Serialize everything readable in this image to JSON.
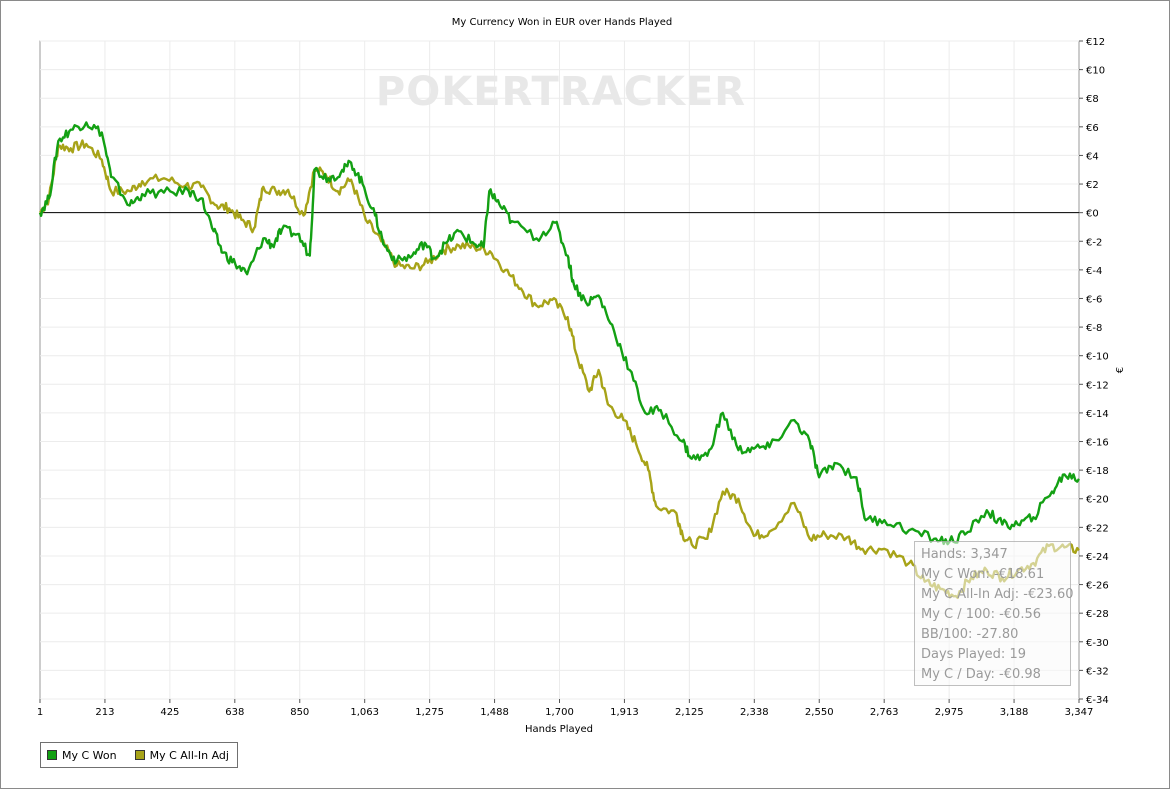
{
  "chart_data": {
    "type": "line",
    "title": "My Currency Won in EUR over Hands Played",
    "xlabel": "Hands Played",
    "ylabel": "€",
    "xlim": [
      1,
      3347
    ],
    "ylim": [
      -34,
      12
    ],
    "x_ticks": [
      "1",
      "213",
      "425",
      "638",
      "850",
      "1,063",
      "1,275",
      "1,488",
      "1,700",
      "1,913",
      "2,125",
      "2,338",
      "2,550",
      "2,763",
      "2,975",
      "3,188",
      "3,347"
    ],
    "y_ticks": [
      "€12",
      "€10",
      "€8",
      "€6",
      "€4",
      "€2",
      "€0",
      "€-2",
      "€-4",
      "€-6",
      "€-8",
      "€-10",
      "€-12",
      "€-14",
      "€-16",
      "€-18",
      "€-20",
      "€-22",
      "€-24",
      "€-26",
      "€-28",
      "€-30",
      "€-32",
      "€-34"
    ],
    "watermark": "POKERTRACKER",
    "grid": true,
    "legend_position": "bottom-left",
    "series": [
      {
        "name": "My C Won",
        "color": "#13a013",
        "points": [
          [
            1,
            0
          ],
          [
            30,
            1
          ],
          [
            60,
            5
          ],
          [
            100,
            5.8
          ],
          [
            150,
            6.3
          ],
          [
            200,
            5.6
          ],
          [
            230,
            2.5
          ],
          [
            290,
            0.5
          ],
          [
            330,
            1.3
          ],
          [
            400,
            1.4
          ],
          [
            480,
            1.5
          ],
          [
            520,
            1
          ],
          [
            560,
            -1.3
          ],
          [
            590,
            -2.8
          ],
          [
            630,
            -3.6
          ],
          [
            668,
            -4.3
          ],
          [
            720,
            -1.8
          ],
          [
            750,
            -2.3
          ],
          [
            780,
            -1.2
          ],
          [
            830,
            -1.5
          ],
          [
            870,
            -3
          ],
          [
            885,
            3
          ],
          [
            930,
            2.4
          ],
          [
            970,
            2.8
          ],
          [
            1003,
            3.5
          ],
          [
            1040,
            2
          ],
          [
            1080,
            -0.2
          ],
          [
            1110,
            -2.3
          ],
          [
            1150,
            -3.4
          ],
          [
            1200,
            -3
          ],
          [
            1240,
            -2.1
          ],
          [
            1270,
            -3.2
          ],
          [
            1310,
            -2.1
          ],
          [
            1350,
            -1.3
          ],
          [
            1400,
            -2.2
          ],
          [
            1430,
            -2.4
          ],
          [
            1448,
            1.5
          ],
          [
            1480,
            0.6
          ],
          [
            1520,
            -0.6
          ],
          [
            1600,
            -1.8
          ],
          [
            1660,
            -0.7
          ],
          [
            1700,
            -3
          ],
          [
            1720,
            -5
          ],
          [
            1760,
            -6.3
          ],
          [
            1800,
            -5.8
          ],
          [
            1850,
            -8.3
          ],
          [
            1900,
            -11
          ],
          [
            1950,
            -14
          ],
          [
            2000,
            -13.8
          ],
          [
            2070,
            -16
          ],
          [
            2100,
            -17.2
          ],
          [
            2150,
            -17
          ],
          [
            2200,
            -14
          ],
          [
            2250,
            -16.6
          ],
          [
            2300,
            -16.5
          ],
          [
            2350,
            -16.4
          ],
          [
            2430,
            -14.5
          ],
          [
            2480,
            -16
          ],
          [
            2510,
            -18.5
          ],
          [
            2560,
            -17.5
          ],
          [
            2630,
            -18.5
          ],
          [
            2660,
            -21.5
          ],
          [
            2720,
            -21.5
          ],
          [
            2800,
            -22.2
          ],
          [
            2880,
            -22.8
          ],
          [
            2930,
            -23
          ],
          [
            2980,
            -22.5
          ],
          [
            3050,
            -20.8
          ],
          [
            3100,
            -21.8
          ],
          [
            3150,
            -21.8
          ],
          [
            3200,
            -21.3
          ],
          [
            3260,
            -19.5
          ],
          [
            3300,
            -18.3
          ],
          [
            3347,
            -18.61
          ]
        ]
      },
      {
        "name": "My C All-In Adj",
        "color": "#a7a318",
        "points": [
          [
            1,
            0
          ],
          [
            30,
            1
          ],
          [
            60,
            4.7
          ],
          [
            100,
            4.5
          ],
          [
            150,
            4.8
          ],
          [
            200,
            3.7
          ],
          [
            230,
            1.5
          ],
          [
            290,
            1.5
          ],
          [
            330,
            2.2
          ],
          [
            400,
            2.4
          ],
          [
            470,
            1.9
          ],
          [
            520,
            1.8
          ],
          [
            570,
            0.5
          ],
          [
            610,
            0.3
          ],
          [
            650,
            -0.5
          ],
          [
            690,
            -1.1
          ],
          [
            720,
            1.8
          ],
          [
            760,
            1.5
          ],
          [
            800,
            1.6
          ],
          [
            850,
            -0.2
          ],
          [
            885,
            3
          ],
          [
            920,
            2.7
          ],
          [
            960,
            1.5
          ],
          [
            1003,
            2.3
          ],
          [
            1050,
            -0.5
          ],
          [
            1100,
            -2
          ],
          [
            1150,
            -3.7
          ],
          [
            1200,
            -3.9
          ],
          [
            1250,
            -3.5
          ],
          [
            1300,
            -2.6
          ],
          [
            1350,
            -2.3
          ],
          [
            1400,
            -2.4
          ],
          [
            1450,
            -2.7
          ],
          [
            1500,
            -4
          ],
          [
            1550,
            -5.3
          ],
          [
            1600,
            -6.5
          ],
          [
            1650,
            -6.1
          ],
          [
            1700,
            -7.3
          ],
          [
            1730,
            -10
          ],
          [
            1770,
            -12.5
          ],
          [
            1800,
            -11
          ],
          [
            1830,
            -13.4
          ],
          [
            1880,
            -14.5
          ],
          [
            1920,
            -16.1
          ],
          [
            1960,
            -18
          ],
          [
            1985,
            -20.5
          ],
          [
            2050,
            -21
          ],
          [
            2070,
            -22.5
          ],
          [
            2100,
            -23.2
          ],
          [
            2150,
            -22.8
          ],
          [
            2200,
            -19.5
          ],
          [
            2250,
            -20
          ],
          [
            2300,
            -22.6
          ],
          [
            2350,
            -22.3
          ],
          [
            2430,
            -20.3
          ],
          [
            2480,
            -22.8
          ],
          [
            2530,
            -22.5
          ],
          [
            2600,
            -22.7
          ],
          [
            2650,
            -23.5
          ],
          [
            2720,
            -23.5
          ],
          [
            2800,
            -24.5
          ],
          [
            2850,
            -25.8
          ],
          [
            2900,
            -26.3
          ],
          [
            2950,
            -26.8
          ],
          [
            3000,
            -25.5
          ],
          [
            3050,
            -25
          ],
          [
            3100,
            -25.5
          ],
          [
            3150,
            -25
          ],
          [
            3200,
            -24.5
          ],
          [
            3250,
            -23.3
          ],
          [
            3300,
            -23.4
          ],
          [
            3347,
            -23.6
          ]
        ]
      }
    ],
    "tooltip": {
      "lines": [
        "Hands: 3,347",
        "My C Won: -€18.61",
        "My C All-In Adj: -€23.60",
        "My C / 100: -€0.56",
        "BB/100: -27.80",
        "Days Played: 19",
        "My C / Day: -€0.98"
      ]
    }
  }
}
